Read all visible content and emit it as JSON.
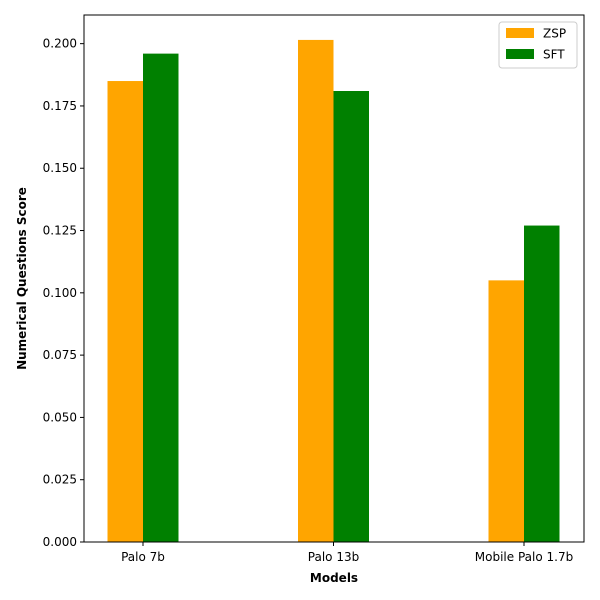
{
  "chart_data": {
    "type": "bar",
    "title": "",
    "xlabel": "Models",
    "ylabel": "Numerical Questions Score",
    "categories": [
      "Palo 7b",
      "Palo 13b",
      "Mobile Palo 1.7b"
    ],
    "series": [
      {
        "name": "ZSP",
        "color": "#ffa500",
        "values": [
          0.185,
          0.2015,
          0.105
        ]
      },
      {
        "name": "SFT",
        "color": "#008000",
        "values": [
          0.196,
          0.181,
          0.127
        ]
      }
    ],
    "ylim": [
      0,
      0.2115
    ],
    "yticks": [
      "0.000",
      "0.025",
      "0.050",
      "0.075",
      "0.100",
      "0.125",
      "0.150",
      "0.175",
      "0.200"
    ],
    "grid": false,
    "legend": "top-right"
  }
}
